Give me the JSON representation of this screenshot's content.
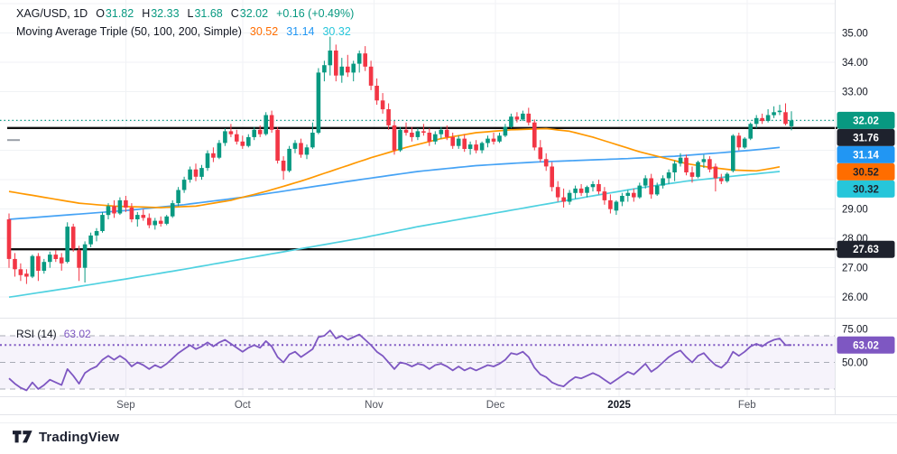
{
  "header": {
    "symbol": "XAG/USD, 1D",
    "ohlc": [
      {
        "label": "O",
        "value": "31.82"
      },
      {
        "label": "H",
        "value": "32.33"
      },
      {
        "label": "L",
        "value": "31.68"
      },
      {
        "label": "C",
        "value": "32.02"
      }
    ],
    "change": "+0.16 (+0.49%)"
  },
  "ma_legend": {
    "label": "Moving Average Triple (50, 100, 200, Simple)",
    "values": [
      "30.52",
      "31.14",
      "30.32"
    ]
  },
  "rsi_legend": {
    "label": "RSI (14)",
    "value": "63.02"
  },
  "footer": {
    "brand": "TradingView"
  },
  "colors": {
    "up": "#089981",
    "down": "#f23645",
    "dark": "#1e222d",
    "blueBadge": "#2196f3",
    "orangeBadge": "#ff6d00",
    "tealBadge": "#26c6da",
    "purple": "#7e57c2",
    "sma50": "#ff9800",
    "sma100": "#46a3f5",
    "sma200": "#4fd1e0",
    "grid": "#f0f2f5",
    "axisText": "#131722",
    "mutedText": "#51545e",
    "separator": "#e3e5ea",
    "blackLine": "#101010",
    "anchor": "#9aa0a8",
    "bandFill": "#7e57c2",
    "brand": "#1c2030"
  },
  "chart_data": {
    "type": "candlestick",
    "symbol": "XAG/USD",
    "interval": "1D",
    "title": "XAG/USD daily with Moving Average Triple (50,100,200) and RSI(14)",
    "price_axis": {
      "min": 25.3,
      "max": 36.12,
      "visible_ticks": [
        35,
        34,
        33,
        29,
        28,
        27,
        26
      ],
      "grid": [
        36,
        35,
        34,
        33,
        32,
        31,
        30,
        29,
        28,
        27,
        26
      ]
    },
    "time_axis": [
      {
        "label": "Sep",
        "i": 20,
        "bold": false
      },
      {
        "label": "Oct",
        "i": 40,
        "bold": false
      },
      {
        "label": "Nov",
        "i": 62.5,
        "bold": false
      },
      {
        "label": "Dec",
        "i": 83.3,
        "bold": false
      },
      {
        "label": "2025",
        "i": 104.5,
        "bold": true
      },
      {
        "label": "Feb",
        "i": 126.4,
        "bold": false
      }
    ],
    "levels": {
      "resistance": 31.76,
      "support": 27.63,
      "last_price": 32.02,
      "drawing_anchor": 31.35
    },
    "price_badges": [
      {
        "text": "32.02",
        "price": 32.02,
        "bg": "up",
        "fg": "#ffffff"
      },
      {
        "text": "31.76",
        "price": 31.76,
        "bg": "dark",
        "fg": "#ffffff"
      },
      {
        "text": "31.14",
        "price": 31.14,
        "bg": "blueBadge",
        "fg": "#ffffff"
      },
      {
        "text": "30.52",
        "price": 30.52,
        "bg": "orangeBadge",
        "fg": "#1e222d"
      },
      {
        "text": "30.32",
        "price": 30.32,
        "bg": "tealBadge",
        "fg": "#1e222d"
      }
    ],
    "support_badge": {
      "text": "27.63",
      "price": 27.63,
      "bg": "dark",
      "fg": "#ffffff"
    },
    "candles": [
      [
        28.65,
        28.85,
        27.0,
        27.3
      ],
      [
        27.3,
        27.5,
        26.7,
        26.95
      ],
      [
        26.95,
        27.15,
        26.55,
        26.75
      ],
      [
        26.8,
        26.95,
        26.45,
        26.7
      ],
      [
        26.7,
        27.45,
        26.65,
        27.4
      ],
      [
        27.4,
        27.5,
        26.55,
        26.9
      ],
      [
        26.9,
        27.3,
        26.8,
        27.2
      ],
      [
        27.2,
        27.55,
        27.0,
        27.45
      ],
      [
        27.45,
        27.6,
        27.2,
        27.3
      ],
      [
        27.35,
        27.5,
        26.9,
        27.15
      ],
      [
        27.2,
        28.55,
        27.15,
        28.4
      ],
      [
        28.4,
        28.5,
        27.55,
        27.65
      ],
      [
        27.6,
        27.75,
        26.55,
        27.0
      ],
      [
        27.0,
        27.9,
        26.5,
        27.8
      ],
      [
        27.8,
        28.2,
        27.7,
        28.1
      ],
      [
        28.1,
        28.35,
        27.9,
        28.25
      ],
      [
        28.25,
        28.9,
        28.2,
        28.8
      ],
      [
        28.8,
        29.2,
        28.65,
        29.1
      ],
      [
        29.1,
        29.3,
        28.7,
        28.85
      ],
      [
        28.85,
        29.4,
        28.8,
        29.3
      ],
      [
        29.3,
        29.45,
        28.9,
        29.05
      ],
      [
        29.05,
        29.2,
        28.55,
        28.65
      ],
      [
        28.65,
        28.9,
        28.4,
        28.8
      ],
      [
        28.8,
        29.0,
        28.6,
        28.7
      ],
      [
        28.7,
        28.85,
        28.35,
        28.45
      ],
      [
        28.45,
        28.7,
        28.3,
        28.6
      ],
      [
        28.6,
        28.75,
        28.4,
        28.5
      ],
      [
        28.5,
        28.8,
        28.45,
        28.75
      ],
      [
        28.75,
        29.3,
        28.7,
        29.2
      ],
      [
        29.2,
        29.75,
        29.1,
        29.65
      ],
      [
        29.65,
        30.1,
        29.55,
        30.0
      ],
      [
        30.0,
        30.45,
        29.9,
        30.35
      ],
      [
        30.35,
        30.55,
        29.95,
        30.1
      ],
      [
        30.1,
        30.5,
        30.0,
        30.4
      ],
      [
        30.4,
        31.0,
        30.3,
        30.9
      ],
      [
        30.9,
        31.1,
        30.6,
        30.75
      ],
      [
        30.75,
        31.35,
        30.7,
        31.25
      ],
      [
        31.25,
        31.75,
        31.15,
        31.65
      ],
      [
        31.65,
        31.9,
        31.45,
        31.55
      ],
      [
        31.55,
        31.7,
        31.2,
        31.3
      ],
      [
        31.3,
        31.5,
        31.05,
        31.15
      ],
      [
        31.15,
        31.55,
        31.1,
        31.45
      ],
      [
        31.45,
        31.8,
        31.35,
        31.7
      ],
      [
        31.7,
        31.85,
        31.45,
        31.55
      ],
      [
        31.55,
        32.3,
        31.5,
        32.2
      ],
      [
        32.2,
        32.35,
        31.6,
        31.7
      ],
      [
        31.7,
        31.8,
        30.55,
        30.65
      ],
      [
        30.65,
        30.8,
        30.0,
        30.3
      ],
      [
        30.3,
        31.15,
        30.25,
        31.05
      ],
      [
        31.05,
        31.35,
        30.9,
        31.25
      ],
      [
        31.25,
        31.4,
        30.75,
        30.85
      ],
      [
        30.85,
        31.2,
        30.7,
        31.1
      ],
      [
        31.1,
        31.95,
        31.05,
        31.6
      ],
      [
        31.6,
        33.8,
        31.55,
        33.65
      ],
      [
        33.65,
        34.05,
        33.35,
        33.9
      ],
      [
        33.9,
        34.87,
        33.55,
        34.4
      ],
      [
        34.4,
        34.6,
        33.35,
        33.55
      ],
      [
        33.55,
        34.15,
        33.3,
        33.85
      ],
      [
        33.85,
        34.25,
        33.5,
        33.65
      ],
      [
        33.65,
        34.05,
        33.35,
        33.95
      ],
      [
        33.95,
        34.4,
        33.65,
        34.3
      ],
      [
        34.3,
        34.55,
        33.7,
        33.85
      ],
      [
        33.85,
        34.05,
        33.05,
        33.2
      ],
      [
        33.2,
        33.45,
        32.55,
        32.7
      ],
      [
        32.7,
        32.95,
        32.25,
        32.4
      ],
      [
        32.4,
        32.6,
        31.7,
        31.85
      ],
      [
        31.85,
        32.0,
        30.85,
        31.0
      ],
      [
        31.0,
        31.8,
        30.95,
        31.7
      ],
      [
        31.7,
        31.95,
        31.5,
        31.6
      ],
      [
        31.6,
        31.8,
        31.3,
        31.45
      ],
      [
        31.45,
        31.75,
        31.35,
        31.65
      ],
      [
        31.65,
        31.9,
        31.5,
        31.6
      ],
      [
        31.6,
        31.75,
        31.15,
        31.3
      ],
      [
        31.3,
        31.65,
        31.2,
        31.55
      ],
      [
        31.55,
        31.8,
        31.4,
        31.7
      ],
      [
        31.7,
        31.85,
        31.35,
        31.45
      ],
      [
        31.45,
        31.6,
        31.05,
        31.15
      ],
      [
        31.15,
        31.5,
        31.05,
        31.4
      ],
      [
        31.4,
        31.55,
        30.95,
        31.05
      ],
      [
        31.05,
        31.3,
        30.85,
        31.2
      ],
      [
        31.2,
        31.35,
        30.9,
        31.0
      ],
      [
        31.0,
        31.3,
        30.9,
        31.25
      ],
      [
        31.25,
        31.5,
        31.1,
        31.4
      ],
      [
        31.4,
        31.6,
        31.2,
        31.3
      ],
      [
        31.3,
        31.6,
        31.25,
        31.5
      ],
      [
        31.5,
        31.9,
        31.45,
        31.8
      ],
      [
        31.8,
        32.25,
        31.75,
        32.15
      ],
      [
        32.15,
        32.3,
        31.95,
        32.05
      ],
      [
        32.05,
        32.35,
        32.0,
        32.25
      ],
      [
        32.25,
        32.45,
        31.85,
        31.95
      ],
      [
        31.95,
        32.05,
        31.0,
        31.1
      ],
      [
        31.1,
        31.35,
        30.6,
        30.7
      ],
      [
        30.7,
        30.9,
        30.3,
        30.45
      ],
      [
        30.45,
        30.6,
        29.6,
        29.75
      ],
      [
        29.75,
        29.95,
        29.25,
        29.4
      ],
      [
        29.4,
        29.7,
        29.05,
        29.25
      ],
      [
        29.25,
        29.65,
        29.15,
        29.55
      ],
      [
        29.55,
        29.8,
        29.35,
        29.7
      ],
      [
        29.7,
        29.85,
        29.45,
        29.55
      ],
      [
        29.55,
        29.8,
        29.4,
        29.75
      ],
      [
        29.75,
        29.95,
        29.6,
        29.85
      ],
      [
        29.85,
        30.0,
        29.5,
        29.6
      ],
      [
        29.6,
        29.75,
        29.15,
        29.3
      ],
      [
        29.3,
        29.5,
        28.85,
        29.0
      ],
      [
        28.95,
        29.3,
        28.8,
        29.25
      ],
      [
        29.25,
        29.55,
        29.1,
        29.45
      ],
      [
        29.45,
        29.65,
        29.25,
        29.55
      ],
      [
        29.55,
        29.7,
        29.25,
        29.4
      ],
      [
        29.4,
        29.9,
        29.35,
        29.8
      ],
      [
        29.8,
        30.15,
        29.7,
        30.05
      ],
      [
        30.05,
        30.2,
        29.35,
        29.5
      ],
      [
        29.5,
        29.9,
        29.45,
        29.8
      ],
      [
        29.8,
        30.15,
        29.7,
        30.05
      ],
      [
        30.05,
        30.35,
        29.85,
        30.25
      ],
      [
        30.25,
        30.65,
        29.95,
        30.55
      ],
      [
        30.55,
        30.9,
        30.45,
        30.75
      ],
      [
        30.75,
        30.85,
        30.15,
        30.25
      ],
      [
        30.25,
        30.45,
        29.9,
        30.1
      ],
      [
        30.1,
        30.65,
        30.05,
        30.6
      ],
      [
        30.6,
        30.85,
        30.4,
        30.7
      ],
      [
        30.7,
        30.8,
        30.25,
        30.35
      ],
      [
        30.45,
        30.55,
        29.6,
        30.05
      ],
      [
        30.05,
        30.2,
        29.85,
        29.95
      ],
      [
        29.95,
        30.25,
        29.9,
        30.2
      ],
      [
        30.3,
        31.55,
        30.25,
        31.5
      ],
      [
        31.5,
        31.6,
        31.0,
        31.1
      ],
      [
        31.1,
        31.45,
        31.05,
        31.4
      ],
      [
        31.4,
        31.95,
        31.35,
        31.9
      ],
      [
        31.9,
        32.2,
        31.75,
        32.1
      ],
      [
        32.1,
        32.25,
        31.9,
        32.0
      ],
      [
        32.0,
        32.4,
        31.95,
        32.2
      ],
      [
        32.2,
        32.5,
        32.1,
        32.3
      ],
      [
        32.3,
        32.55,
        32.2,
        32.35
      ],
      [
        32.3,
        32.6,
        31.85,
        31.9
      ],
      [
        31.82,
        32.33,
        31.68,
        32.02
      ]
    ],
    "overlays": {
      "sma50": {
        "period": 50,
        "color": "sma50",
        "points": [
          [
            0,
            29.6
          ],
          [
            6,
            29.4
          ],
          [
            12,
            29.2
          ],
          [
            18,
            29.1
          ],
          [
            26,
            29.05
          ],
          [
            32,
            29.1
          ],
          [
            38,
            29.3
          ],
          [
            44,
            29.6
          ],
          [
            50,
            29.95
          ],
          [
            56,
            30.35
          ],
          [
            62,
            30.75
          ],
          [
            68,
            31.1
          ],
          [
            74,
            31.4
          ],
          [
            80,
            31.6
          ],
          [
            86,
            31.7
          ],
          [
            92,
            31.74
          ],
          [
            96,
            31.65
          ],
          [
            100,
            31.45
          ],
          [
            104,
            31.2
          ],
          [
            108,
            30.95
          ],
          [
            112,
            30.75
          ],
          [
            116,
            30.55
          ],
          [
            120,
            30.42
          ],
          [
            124,
            30.33
          ],
          [
            128,
            30.3
          ],
          [
            131,
            30.4
          ],
          [
            134,
            30.52
          ]
        ]
      },
      "sma100": {
        "period": 100,
        "color": "sma100",
        "points": [
          [
            0,
            28.65
          ],
          [
            10,
            28.8
          ],
          [
            20,
            28.95
          ],
          [
            30,
            29.15
          ],
          [
            40,
            29.4
          ],
          [
            50,
            29.7
          ],
          [
            60,
            30.0
          ],
          [
            70,
            30.28
          ],
          [
            80,
            30.48
          ],
          [
            90,
            30.6
          ],
          [
            98,
            30.66
          ],
          [
            106,
            30.72
          ],
          [
            114,
            30.8
          ],
          [
            122,
            30.92
          ],
          [
            128,
            31.02
          ],
          [
            134,
            31.14
          ]
        ]
      },
      "sma200": {
        "period": 200,
        "color": "sma200",
        "points": [
          [
            0,
            26.0
          ],
          [
            10,
            26.3
          ],
          [
            20,
            26.62
          ],
          [
            30,
            26.95
          ],
          [
            40,
            27.3
          ],
          [
            50,
            27.65
          ],
          [
            60,
            28.0
          ],
          [
            70,
            28.4
          ],
          [
            80,
            28.75
          ],
          [
            90,
            29.1
          ],
          [
            100,
            29.45
          ],
          [
            108,
            29.72
          ],
          [
            116,
            29.95
          ],
          [
            124,
            30.12
          ],
          [
            134,
            30.32
          ]
        ]
      }
    },
    "rsi": {
      "period": 14,
      "axis": {
        "min": 24.6,
        "max": 82.9
      },
      "levels": {
        "upper": 70,
        "middle": 50,
        "lower": 30
      },
      "last": 63.02,
      "ticks": [
        {
          "v": 75,
          "label": "75.00"
        },
        {
          "v": 50,
          "label": "50.00"
        }
      ],
      "badge": {
        "text": "63.02",
        "bg": "purple",
        "fg": "#ffffff"
      },
      "values": [
        38,
        34,
        31,
        29,
        35,
        30,
        33,
        37,
        35,
        33,
        45,
        40,
        34,
        42,
        45,
        47,
        52,
        55,
        52,
        55,
        52,
        47,
        50,
        48,
        45,
        48,
        46,
        49,
        53,
        57,
        60,
        63,
        60,
        62,
        65,
        62,
        65,
        67,
        64,
        61,
        58,
        61,
        63,
        61,
        66,
        62,
        54,
        50,
        56,
        58,
        54,
        57,
        60,
        69,
        70,
        74,
        68,
        70,
        67,
        69,
        71,
        67,
        63,
        58,
        55,
        50,
        45,
        50,
        49,
        47,
        49,
        48,
        45,
        48,
        49,
        47,
        44,
        47,
        44,
        46,
        44,
        46,
        48,
        47,
        49,
        52,
        57,
        56,
        58,
        54,
        46,
        41,
        39,
        35,
        33,
        32,
        36,
        39,
        38,
        40,
        42,
        40,
        37,
        34,
        37,
        40,
        43,
        41,
        45,
        49,
        43,
        46,
        50,
        54,
        57,
        59,
        54,
        50,
        55,
        57,
        52,
        48,
        46,
        50,
        58,
        55,
        58,
        62,
        64,
        62,
        65,
        67,
        68,
        63,
        63.02
      ]
    }
  }
}
